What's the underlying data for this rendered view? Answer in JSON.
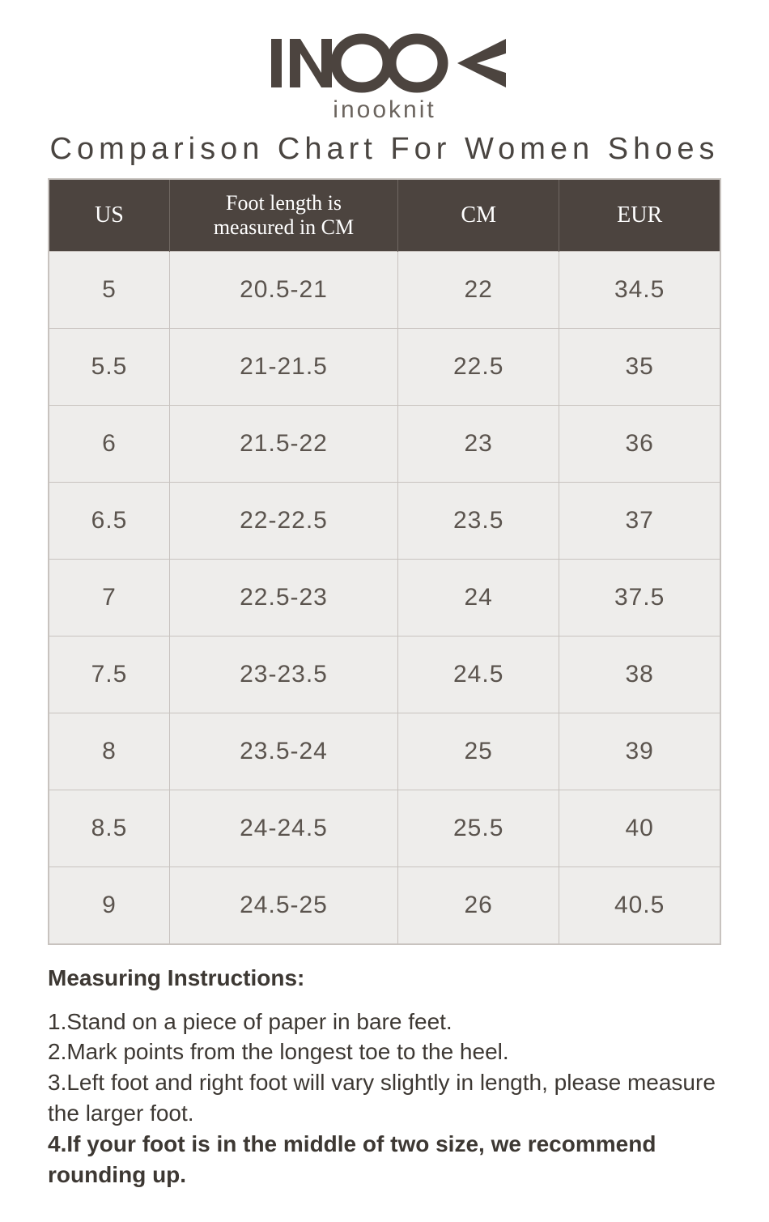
{
  "brand": {
    "name": "inooknit"
  },
  "chart": {
    "title": "Comparison Chart For Women Shoes",
    "columns": [
      "US",
      "Foot length is\nmeasured in CM",
      "CM",
      "EUR"
    ],
    "rows": [
      [
        "5",
        "20.5-21",
        "22",
        "34.5"
      ],
      [
        "5.5",
        "21-21.5",
        "22.5",
        "35"
      ],
      [
        "6",
        "21.5-22",
        "23",
        "36"
      ],
      [
        "6.5",
        "22-22.5",
        "23.5",
        "37"
      ],
      [
        "7",
        "22.5-23",
        "24",
        "37.5"
      ],
      [
        "7.5",
        "23-23.5",
        "24.5",
        "38"
      ],
      [
        "8",
        "23.5-24",
        "25",
        "39"
      ],
      [
        "8.5",
        "24-24.5",
        "25.5",
        "40"
      ],
      [
        "9",
        "24.5-25",
        "26",
        "40.5"
      ]
    ],
    "header_bg": "#4c443f",
    "header_text_color": "#ffffff",
    "cell_bg": "#eeedeb",
    "cell_text_color": "#5b544e",
    "border_color": "#c8c3bf",
    "header_fontsize": 28,
    "cell_fontsize": 30,
    "title_fontsize": 38
  },
  "instructions": {
    "heading": "Measuring Instructions:",
    "lines": [
      {
        "text": "1.Stand on a piece of paper in bare feet.",
        "bold": false
      },
      {
        "text": "2.Mark points from the longest toe to the heel.",
        "bold": false
      },
      {
        "text": "3.Left foot and right foot will vary slightly in length, please measure the larger foot.",
        "bold": false
      },
      {
        "text": "4.If your foot is in the middle of two size, we recommend rounding up.",
        "bold": true
      }
    ],
    "fontsize": 28,
    "text_color": "#3d3833"
  }
}
